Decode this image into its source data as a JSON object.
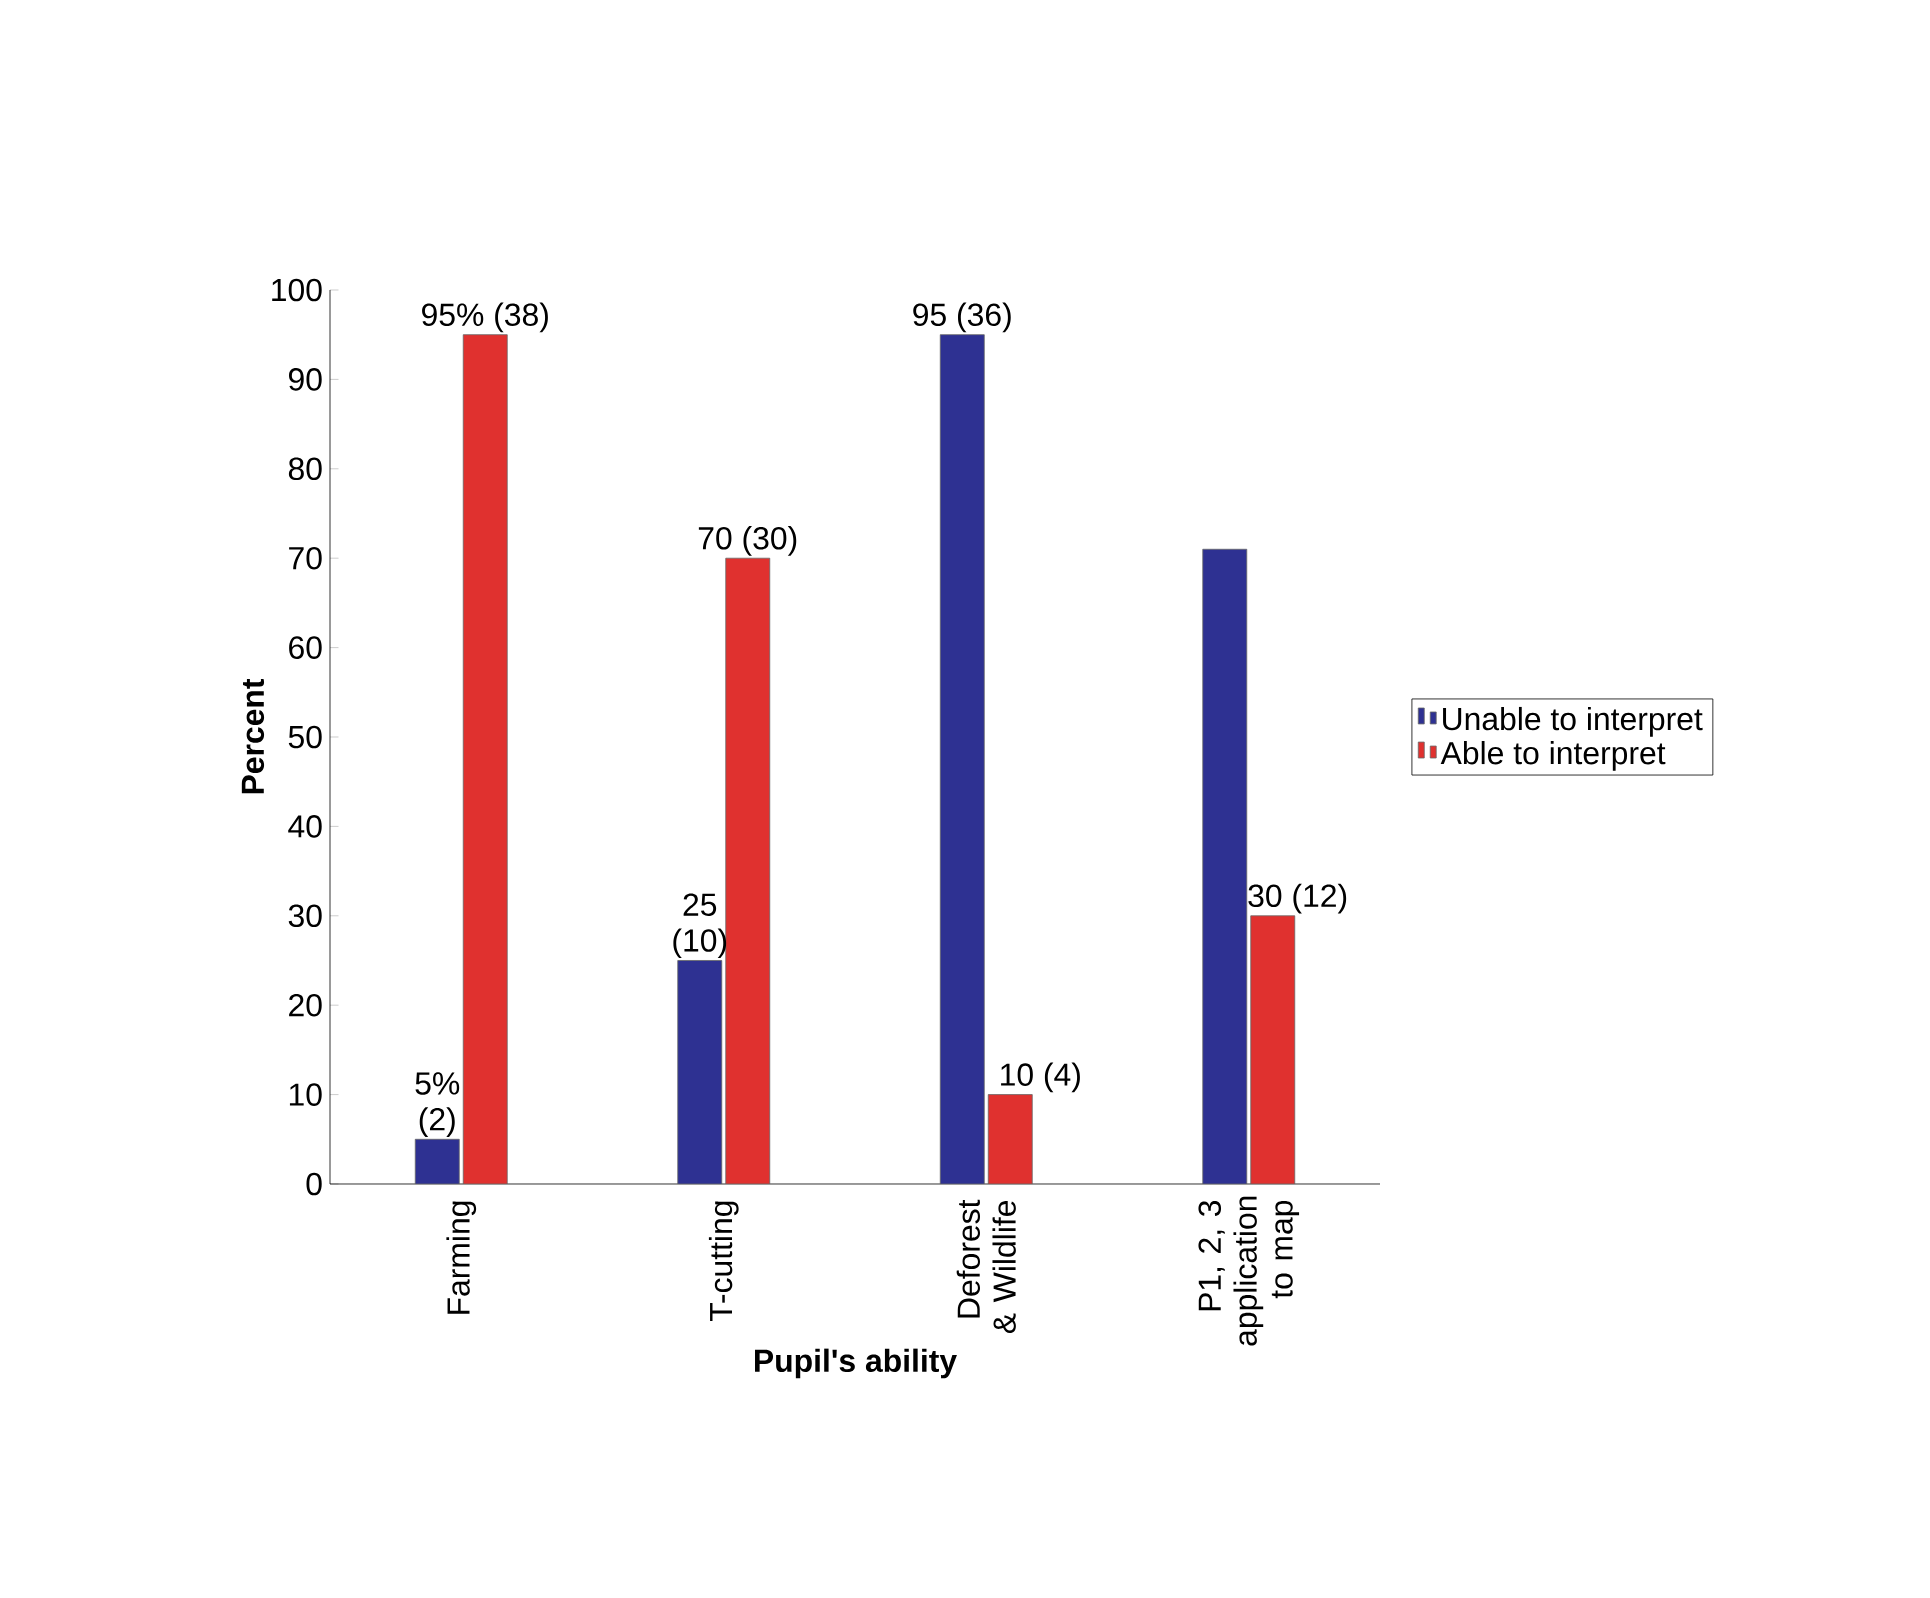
{
  "chart_data": {
    "type": "bar",
    "xlabel": "Pupil's ability",
    "ylabel": "Percent",
    "categories": [
      "Farming",
      "T-cutting",
      "Deforest & Wildlife",
      "P1, 2, 3 application to map"
    ],
    "series": [
      {
        "name": "Unable to interpret",
        "color": "#2e3192",
        "values": [
          5,
          25,
          95,
          71
        ],
        "value_labels": [
          "5% (2)",
          "25 (10)",
          "95 (36)",
          null
        ]
      },
      {
        "name": "Able to interpret",
        "color": "#e0312f",
        "values": [
          95,
          70,
          10,
          30
        ],
        "value_labels": [
          "95% (38)",
          "70 (30)",
          "10 (4)",
          "30 (12)"
        ]
      }
    ],
    "ylim": [
      0,
      100
    ],
    "yticks": [
      0,
      10,
      20,
      30,
      40,
      50,
      60,
      70,
      80,
      90,
      100
    ],
    "legend": "right"
  }
}
